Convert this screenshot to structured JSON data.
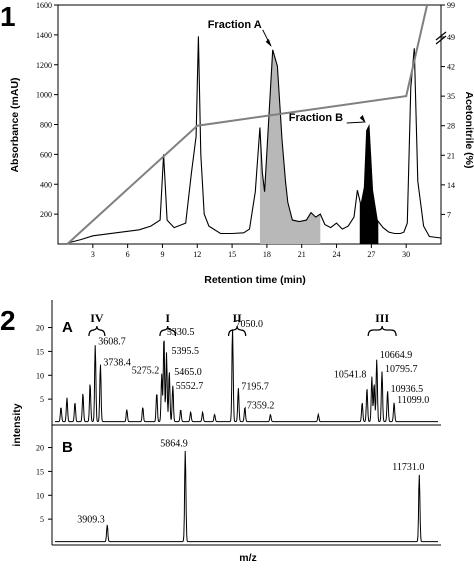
{
  "chart_data": [
    {
      "type": "line",
      "panel_label": "1",
      "xlabel": "Retention time (min)",
      "ylabel": "Absorbance (mAU)",
      "y2label": "Acetonitrile (%)",
      "xlim": [
        0,
        33
      ],
      "ylim": [
        0,
        1600
      ],
      "y2lim": [
        0,
        99
      ],
      "x_ticks": [
        "3",
        "6",
        "9",
        "12",
        "15",
        "18",
        "21",
        "24",
        "27",
        "30"
      ],
      "y_ticks": [
        "200",
        "400",
        "600",
        "800",
        "1000",
        "1200",
        "1400",
        "1600"
      ],
      "y2_ticks": [
        "7",
        "14",
        "21",
        "28",
        "35",
        "42",
        "49",
        "99"
      ],
      "series": [
        {
          "name": "absorbance",
          "color": "#000000",
          "x": [
            1.0,
            2,
            3,
            4,
            5,
            6,
            7,
            8,
            8.8,
            9.1,
            9.4,
            10,
            11,
            11.5,
            11.9,
            12.1,
            12.3,
            12.6,
            13,
            14,
            15,
            16,
            16.5,
            17,
            17.4,
            17.6,
            17.8,
            18.1,
            18.5,
            18.9,
            19.3,
            19.6,
            19.8,
            20.2,
            20.8,
            21.4,
            21.8,
            22.2,
            22.6,
            23,
            23.5,
            24,
            24.5,
            25,
            25.5,
            25.8,
            26.1,
            26.4,
            26.6,
            26.8,
            27.1,
            27.5,
            28,
            28.5,
            29,
            29.5,
            29.8,
            30.1,
            30.4,
            30.7,
            31,
            31.5,
            32,
            33
          ],
          "y": [
            10,
            30,
            55,
            65,
            75,
            85,
            95,
            120,
            160,
            600,
            160,
            110,
            140,
            480,
            720,
            1390,
            600,
            200,
            120,
            70,
            70,
            75,
            100,
            350,
            780,
            480,
            350,
            760,
            1300,
            1190,
            700,
            420,
            280,
            160,
            150,
            160,
            210,
            180,
            200,
            130,
            110,
            140,
            100,
            120,
            180,
            360,
            260,
            380,
            760,
            790,
            360,
            160,
            110,
            80,
            70,
            70,
            80,
            140,
            1050,
            1310,
            420,
            120,
            50,
            40
          ]
        },
        {
          "name": "acetonitrile",
          "color": "#808080",
          "x": [
            0.8,
            12,
            30,
            31.8
          ],
          "y": [
            0,
            28,
            35,
            99
          ]
        }
      ],
      "fills": [
        {
          "name": "Fraction A",
          "x_start": 17.4,
          "x_end": 22.6,
          "color": "#b8b8b8"
        },
        {
          "name": "Fraction B",
          "x_start": 26.0,
          "x_end": 27.6,
          "color": "#000000"
        }
      ],
      "annotations": [
        {
          "text": "Fraction A",
          "x": 18.5,
          "y": 1300
        },
        {
          "text": "Fraction B",
          "x": 26.6,
          "y": 790
        }
      ]
    },
    {
      "type": "line",
      "panel_label": "2",
      "subpanel": "A",
      "xlabel": "",
      "ylabel": "intensity",
      "xlim": [
        2600,
        12200
      ],
      "ylim": [
        0,
        22
      ],
      "y_ticks": [
        "5",
        "10",
        "15",
        "20"
      ],
      "brackets": [
        {
          "label": "IV",
          "x_start": 3450,
          "x_end": 3850
        },
        {
          "label": "I",
          "x_start": 5230,
          "x_end": 5620
        },
        {
          "label": "II",
          "x_start": 6950,
          "x_end": 7380
        },
        {
          "label": "III",
          "x_start": 10450,
          "x_end": 11150
        }
      ],
      "peaks": [
        {
          "label": "3608.7",
          "x": 3608.7,
          "y": 16.0
        },
        {
          "label": "3738.4",
          "x": 3738.4,
          "y": 12.0
        },
        {
          "label": "5275.2",
          "x": 5275.2,
          "y": 10.0
        },
        {
          "label": "5330.5",
          "x": 5330.5,
          "y": 18.0
        },
        {
          "label": "5395.5",
          "x": 5395.5,
          "y": 14.5
        },
        {
          "label": "5465.0",
          "x": 5465.0,
          "y": 10.5
        },
        {
          "label": "5552.7",
          "x": 5552.7,
          "y": 7.5
        },
        {
          "label": "7050.0",
          "x": 7050.0,
          "y": 19.5
        },
        {
          "label": "7195.7",
          "x": 7195.7,
          "y": 7.0
        },
        {
          "label": "7359.2",
          "x": 7359.2,
          "y": 3.0
        },
        {
          "label": "10541.8",
          "x": 10541.8,
          "y": 9.5
        },
        {
          "label": "10664.9",
          "x": 10664.9,
          "y": 13.0
        },
        {
          "label": "10795.7",
          "x": 10795.7,
          "y": 10.5
        },
        {
          "label": "10936.5",
          "x": 10936.5,
          "y": 6.5
        },
        {
          "label": "11099.0",
          "x": 11099.0,
          "y": 4.0
        }
      ],
      "minor_peaks": [
        {
          "x": 2750,
          "y": 3
        },
        {
          "x": 2900,
          "y": 5
        },
        {
          "x": 3100,
          "y": 4
        },
        {
          "x": 3300,
          "y": 6
        },
        {
          "x": 3480,
          "y": 8
        },
        {
          "x": 4400,
          "y": 2.5
        },
        {
          "x": 4800,
          "y": 3
        },
        {
          "x": 5150,
          "y": 6
        },
        {
          "x": 5750,
          "y": 2.5
        },
        {
          "x": 6000,
          "y": 2
        },
        {
          "x": 6300,
          "y": 2
        },
        {
          "x": 6600,
          "y": 1.5
        },
        {
          "x": 8000,
          "y": 1.5
        },
        {
          "x": 9200,
          "y": 1.5
        },
        {
          "x": 10300,
          "y": 4
        },
        {
          "x": 10420,
          "y": 7
        },
        {
          "x": 10600,
          "y": 8
        }
      ]
    },
    {
      "type": "line",
      "subpanel": "B",
      "xlabel": "m/z",
      "ylabel": "intensity",
      "xlim": [
        2600,
        12200
      ],
      "ylim": [
        0,
        22
      ],
      "y_ticks": [
        "5",
        "10",
        "15",
        "20"
      ],
      "peaks": [
        {
          "label": "3909.3",
          "x": 3909.3,
          "y": 3.5
        },
        {
          "label": "5864.9",
          "x": 5864.9,
          "y": 19.0
        },
        {
          "label": "11731.0",
          "x": 11731.0,
          "y": 14.0
        }
      ]
    }
  ]
}
